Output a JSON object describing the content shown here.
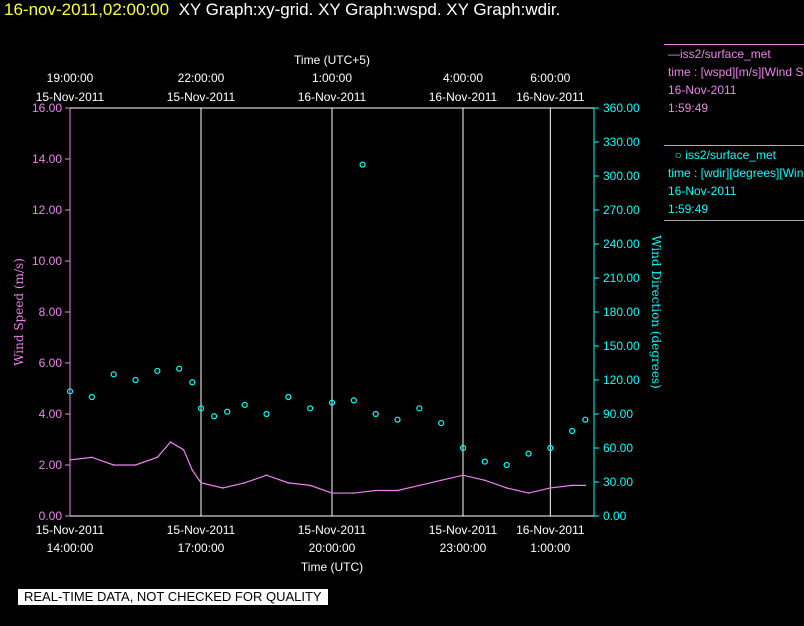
{
  "header": {
    "date": "16-nov-2011,02:00:00",
    "rest": "XY Graph:xy-grid.  XY Graph:wspd.  XY Graph:wdir."
  },
  "legend": {
    "wspd": {
      "name": "iss2/surface_met",
      "desc": "time : [wspd][m/s][Wind Speed]",
      "date": "16-Nov-2011",
      "time": "1:59:49",
      "color": "#ee82ee"
    },
    "wdir": {
      "name": "iss2/surface_met",
      "desc": "time : [wdir][degrees][Wind Direction]",
      "date": "16-Nov-2011",
      "time": "1:59:49",
      "color": "#00ffff"
    }
  },
  "disclaimer": "REAL-TIME DATA, NOT CHECKED FOR QUALITY",
  "chart_data": {
    "type": "line",
    "top_axis": {
      "label": "Time (UTC+5)",
      "ticks": [
        {
          "time": "19:00:00",
          "date": "15-Nov-2011"
        },
        {
          "time": "22:00:00",
          "date": "15-Nov-2011"
        },
        {
          "time": "1:00:00",
          "date": "16-Nov-2011"
        },
        {
          "time": "4:00:00",
          "date": "16-Nov-2011"
        },
        {
          "time": "6:00:00",
          "date": "16-Nov-2011"
        }
      ]
    },
    "bottom_axis": {
      "label": "Time (UTC)",
      "ticks": [
        {
          "date": "15-Nov-2011",
          "time": "14:00:00"
        },
        {
          "date": "15-Nov-2011",
          "time": "17:00:00"
        },
        {
          "date": "15-Nov-2011",
          "time": "20:00:00"
        },
        {
          "date": "15-Nov-2011",
          "time": "23:00:00"
        },
        {
          "date": "16-Nov-2011",
          "time": "1:00:00"
        }
      ],
      "range_hours_utc": [
        14.0,
        26.0
      ]
    },
    "y_left": {
      "label": "Wind Speed (m/s)",
      "ylim": [
        0,
        16
      ],
      "tick_labels": [
        "0.00",
        "2.00",
        "4.00",
        "6.00",
        "8.00",
        "10.00",
        "12.00",
        "14.00",
        "16.00"
      ]
    },
    "y_right": {
      "label": "Wind Direction (degrees)",
      "ylim": [
        0,
        360
      ],
      "tick_labels": [
        "0.00",
        "30.00",
        "60.00",
        "90.00",
        "120.00",
        "150.00",
        "180.00",
        "210.00",
        "240.00",
        "270.00",
        "300.00",
        "330.00",
        "360.00"
      ]
    },
    "vertical_grid_hours_utc": [
      17,
      20,
      23,
      25
    ],
    "series": [
      {
        "name": "iss2/surface_met wspd",
        "axis": "left",
        "style": "line",
        "color": "#ee82ee",
        "x_hours_utc": [
          14.0,
          14.5,
          15.0,
          15.5,
          16.0,
          16.3,
          16.6,
          16.8,
          17.0,
          17.5,
          18.0,
          18.5,
          19.0,
          19.5,
          20.0,
          20.5,
          21.0,
          21.5,
          22.0,
          22.5,
          23.0,
          23.5,
          24.0,
          24.5,
          25.0,
          25.5,
          25.8
        ],
        "values": [
          2.2,
          2.3,
          2.0,
          2.0,
          2.3,
          2.9,
          2.6,
          1.8,
          1.3,
          1.1,
          1.3,
          1.6,
          1.3,
          1.2,
          0.9,
          0.9,
          1.0,
          1.0,
          1.2,
          1.4,
          1.6,
          1.4,
          1.1,
          0.9,
          1.1,
          1.2,
          1.2
        ]
      },
      {
        "name": "iss2/surface_met wdir",
        "axis": "right",
        "style": "markers",
        "color": "#00ffff",
        "x_hours_utc": [
          14.0,
          14.5,
          15.0,
          15.5,
          16.0,
          16.5,
          16.8,
          17.0,
          17.3,
          17.6,
          18.0,
          18.5,
          19.0,
          19.5,
          20.0,
          20.5,
          20.7,
          21.0,
          21.5,
          22.0,
          22.5,
          23.0,
          23.5,
          24.0,
          24.5,
          25.0,
          25.5,
          25.8
        ],
        "values": [
          110,
          105,
          125,
          120,
          128,
          130,
          118,
          95,
          88,
          92,
          98,
          90,
          105,
          95,
          100,
          102,
          310,
          90,
          85,
          95,
          82,
          60,
          48,
          45,
          55,
          60,
          75,
          85
        ]
      }
    ]
  }
}
